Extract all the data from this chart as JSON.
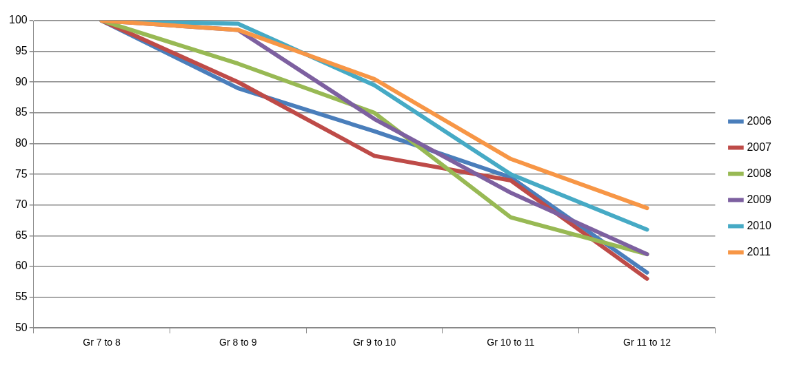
{
  "chart_data": {
    "type": "line",
    "categories": [
      "Gr 7 to 8",
      "Gr 8 to 9",
      "Gr 9 to 10",
      "Gr 10 to 11",
      "Gr 11 to 12"
    ],
    "series": [
      {
        "name": "2006",
        "color": "#4a7ebb",
        "values": [
          100,
          89,
          82,
          74.5,
          59
        ]
      },
      {
        "name": "2007",
        "color": "#be4b48",
        "values": [
          100,
          90,
          78,
          74,
          58
        ]
      },
      {
        "name": "2008",
        "color": "#98b954",
        "values": [
          100,
          93,
          85,
          68,
          62
        ]
      },
      {
        "name": "2009",
        "color": "#7d60a0",
        "values": [
          100,
          98.5,
          84,
          72,
          62
        ]
      },
      {
        "name": "2010",
        "color": "#46aac5",
        "values": [
          100,
          99.5,
          89.5,
          75,
          66
        ]
      },
      {
        "name": "2011",
        "color": "#f79646",
        "values": [
          100,
          98.5,
          90.5,
          77.5,
          69.5
        ]
      }
    ],
    "ylim": [
      50,
      100
    ],
    "yticks": [
      50,
      55,
      60,
      65,
      70,
      75,
      80,
      85,
      90,
      95,
      100
    ],
    "grid": "y",
    "legend": "right",
    "marker": "none",
    "line_style": "solid"
  }
}
